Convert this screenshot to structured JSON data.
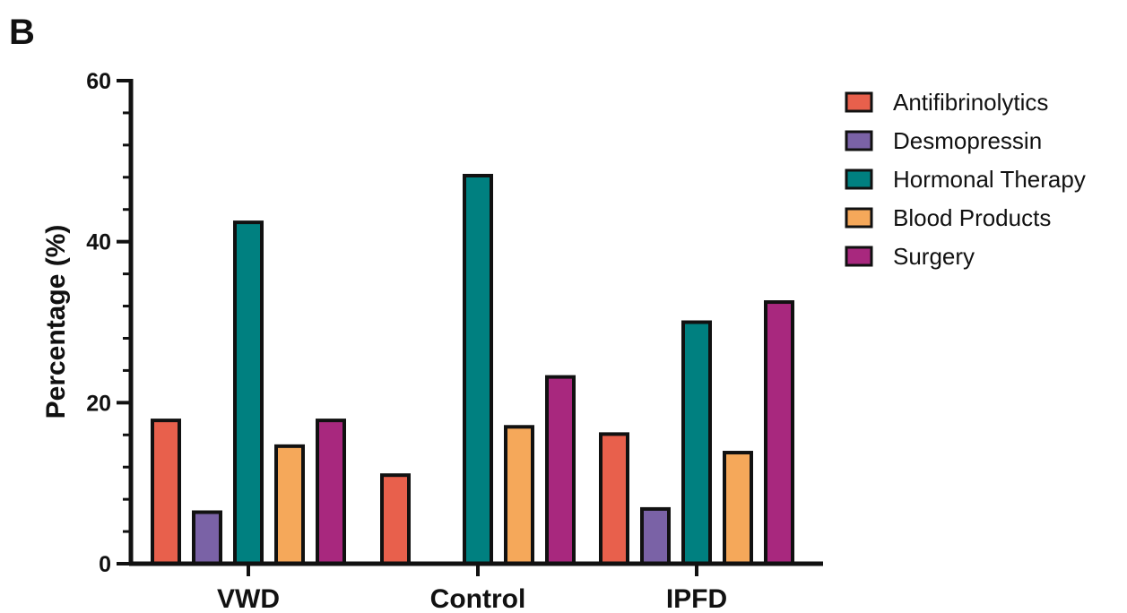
{
  "panel_label": "B",
  "chart_data": {
    "type": "bar",
    "categories": [
      "VWD",
      "Control",
      "IPFD"
    ],
    "series": [
      {
        "name": "Antifibrinolytics",
        "color": "#E8604C",
        "values": [
          17.8,
          11.0,
          16.1
        ]
      },
      {
        "name": "Desmopressin",
        "color": "#7A62A6",
        "values": [
          6.4,
          0,
          6.8
        ]
      },
      {
        "name": "Hormonal Therapy",
        "color": "#008080",
        "values": [
          42.4,
          48.2,
          30.0
        ]
      },
      {
        "name": "Blood Products",
        "color": "#F5A85A",
        "values": [
          14.6,
          17.0,
          13.8
        ]
      },
      {
        "name": "Surgery",
        "color": "#A8287E",
        "values": [
          17.8,
          23.2,
          32.5
        ]
      }
    ],
    "ylabel": "Percentage (%)",
    "xlabel": "",
    "ylim": [
      0,
      60
    ],
    "yticks": [
      0,
      20,
      40,
      60
    ],
    "grid": false,
    "legend_position": "right"
  }
}
